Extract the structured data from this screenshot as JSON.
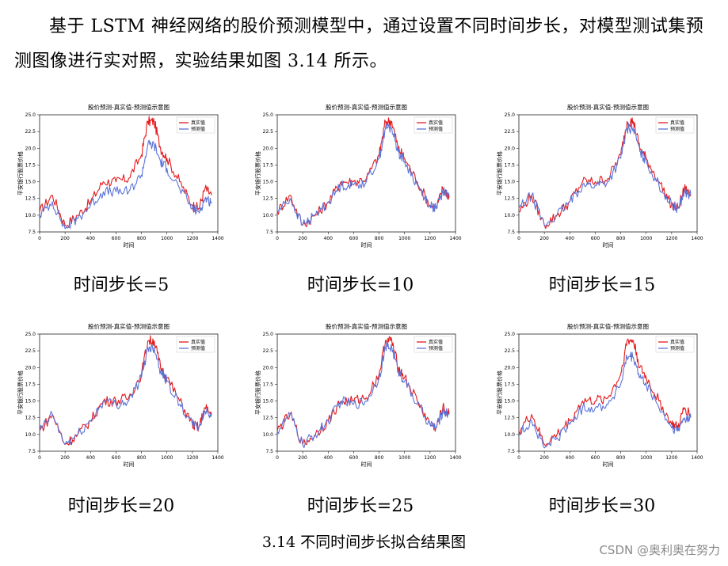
{
  "paragraph": "基于 LSTM 神经网络的股价预测模型中，通过设置不同时间步长，对模型测试集预测图像进行实对照，实验结果如图 3.14 所示。",
  "colors": {
    "real": "#e41a1c",
    "predicted": "#5b74d9"
  },
  "figure_caption": "3.14  不同时间步长拟合结果图",
  "watermark": "CSDN @奥利奥在努力",
  "charts": [
    {
      "caption": "时间步长=5"
    },
    {
      "caption": "时间步长=10"
    },
    {
      "caption": "时间步长=15"
    },
    {
      "caption": "时间步长=20"
    },
    {
      "caption": "时间步长=25"
    },
    {
      "caption": "时间步长=30"
    }
  ],
  "chart_data": [
    {
      "type": "line",
      "title": "股价预测-真实值-预测值示意图",
      "xlabel": "时间",
      "ylabel": "平安银行股票价格",
      "xlim": [
        0,
        1400
      ],
      "ylim": [
        7.5,
        25.0
      ],
      "x_ticks": [
        0,
        200,
        400,
        600,
        800,
        1000,
        1200,
        1400
      ],
      "y_ticks": [
        "7.5",
        "10.0",
        "12.5",
        "15.0",
        "17.5",
        "20.0",
        "22.5",
        "25.0"
      ],
      "legend_position": "top-right",
      "x": [
        0,
        100,
        200,
        300,
        400,
        500,
        600,
        700,
        800,
        850,
        900,
        950,
        1000,
        1100,
        1200,
        1250,
        1300,
        1350
      ],
      "series": [
        {
          "name": "真实值",
          "values": [
            10.5,
            13.0,
            8.5,
            10.0,
            12.0,
            15.0,
            15.0,
            15.5,
            19.0,
            24.0,
            24.0,
            20.0,
            18.5,
            15.0,
            11.5,
            11.0,
            14.0,
            13.0
          ]
        },
        {
          "name": "预测值",
          "values": [
            10.0,
            12.0,
            8.0,
            9.5,
            11.5,
            13.5,
            13.5,
            13.5,
            16.0,
            20.5,
            20.5,
            18.0,
            17.0,
            14.0,
            11.0,
            10.5,
            12.5,
            12.0
          ]
        }
      ]
    },
    {
      "type": "line",
      "title": "股价预测-真实值-预测值示意图",
      "xlabel": "时间",
      "ylabel": "平安银行股票价格",
      "xlim": [
        0,
        1400
      ],
      "ylim": [
        7.5,
        25.0
      ],
      "x_ticks": [
        0,
        200,
        400,
        600,
        800,
        1000,
        1200,
        1400
      ],
      "y_ticks": [
        "7.5",
        "10.0",
        "12.5",
        "15.0",
        "17.5",
        "20.0",
        "22.5",
        "25.0"
      ],
      "legend_position": "top-right",
      "x": [
        0,
        100,
        200,
        300,
        400,
        500,
        600,
        700,
        800,
        850,
        900,
        950,
        1000,
        1100,
        1200,
        1250,
        1300,
        1350
      ],
      "series": [
        {
          "name": "真实值",
          "values": [
            10.5,
            13.0,
            8.5,
            10.0,
            12.0,
            15.0,
            15.0,
            15.5,
            19.0,
            24.0,
            24.0,
            20.0,
            18.5,
            15.0,
            11.5,
            11.0,
            14.0,
            13.0
          ]
        },
        {
          "name": "预测值",
          "values": [
            10.5,
            12.5,
            8.5,
            10.0,
            12.0,
            14.5,
            14.5,
            15.0,
            18.5,
            23.0,
            23.0,
            19.5,
            18.0,
            14.5,
            11.5,
            11.0,
            13.5,
            13.0
          ]
        }
      ]
    },
    {
      "type": "line",
      "title": "股价预测-真实值-预测值示意图",
      "xlabel": "时间",
      "ylabel": "平安银行股票价格",
      "xlim": [
        0,
        1400
      ],
      "ylim": [
        7.5,
        25.0
      ],
      "x_ticks": [
        0,
        200,
        400,
        600,
        800,
        1000,
        1200,
        1400
      ],
      "y_ticks": [
        "7.5",
        "10.0",
        "12.5",
        "15.0",
        "17.5",
        "20.0",
        "22.5",
        "25.0"
      ],
      "legend_position": "top-right",
      "x": [
        0,
        100,
        200,
        300,
        400,
        500,
        600,
        700,
        800,
        850,
        900,
        950,
        1000,
        1100,
        1200,
        1250,
        1300,
        1350
      ],
      "series": [
        {
          "name": "真实值",
          "values": [
            10.5,
            13.0,
            8.5,
            10.0,
            12.0,
            15.0,
            15.0,
            15.5,
            19.0,
            24.0,
            24.0,
            20.0,
            18.5,
            15.0,
            11.5,
            11.0,
            14.0,
            13.0
          ]
        },
        {
          "name": "预测值",
          "values": [
            11.0,
            13.0,
            8.5,
            10.0,
            12.0,
            14.5,
            14.5,
            15.0,
            18.5,
            23.0,
            23.0,
            19.5,
            18.0,
            14.5,
            11.5,
            11.0,
            13.5,
            13.0
          ]
        }
      ]
    },
    {
      "type": "line",
      "title": "股价预测-真实值-预测值示意图",
      "xlabel": "时间",
      "ylabel": "平安银行股票价格",
      "xlim": [
        0,
        1400
      ],
      "ylim": [
        7.5,
        25.0
      ],
      "x_ticks": [
        0,
        200,
        400,
        600,
        800,
        1000,
        1200,
        1400
      ],
      "y_ticks": [
        "7.5",
        "10.0",
        "12.5",
        "15.0",
        "17.5",
        "20.0",
        "22.5",
        "25.0"
      ],
      "legend_position": "top-right",
      "x": [
        0,
        100,
        200,
        300,
        400,
        500,
        600,
        700,
        800,
        850,
        900,
        950,
        1000,
        1100,
        1200,
        1250,
        1300,
        1350
      ],
      "series": [
        {
          "name": "真实值",
          "values": [
            10.5,
            13.0,
            8.5,
            10.0,
            12.0,
            15.0,
            15.0,
            15.5,
            19.0,
            24.0,
            24.0,
            20.0,
            18.5,
            15.0,
            11.5,
            11.0,
            14.0,
            13.0
          ]
        },
        {
          "name": "预测值",
          "values": [
            10.5,
            13.0,
            8.5,
            10.0,
            12.0,
            15.0,
            14.5,
            15.0,
            18.5,
            23.0,
            23.0,
            19.5,
            18.0,
            14.5,
            11.5,
            11.0,
            13.5,
            13.0
          ]
        }
      ]
    },
    {
      "type": "line",
      "title": "股价预测-真实值-预测值示意图",
      "xlabel": "时间",
      "ylabel": "平安银行股票价格",
      "xlim": [
        0,
        1400
      ],
      "ylim": [
        7.5,
        25.0
      ],
      "x_ticks": [
        0,
        200,
        400,
        600,
        800,
        1000,
        1200,
        1400
      ],
      "y_ticks": [
        "7.5",
        "10.0",
        "12.5",
        "15.0",
        "17.5",
        "20.0",
        "22.5",
        "25.0"
      ],
      "legend_position": "top-right",
      "x": [
        0,
        100,
        200,
        300,
        400,
        500,
        600,
        700,
        800,
        850,
        900,
        950,
        1000,
        1100,
        1200,
        1250,
        1300,
        1350
      ],
      "series": [
        {
          "name": "真实值",
          "values": [
            10.5,
            13.0,
            8.5,
            10.0,
            12.0,
            15.0,
            15.0,
            15.5,
            19.0,
            24.0,
            24.0,
            20.0,
            18.5,
            15.0,
            11.5,
            11.0,
            14.0,
            13.0
          ]
        },
        {
          "name": "预测值",
          "values": [
            10.5,
            13.0,
            8.5,
            10.0,
            12.0,
            15.0,
            14.5,
            15.0,
            18.5,
            23.0,
            23.0,
            19.5,
            18.0,
            14.5,
            11.5,
            11.0,
            13.5,
            13.0
          ]
        }
      ]
    },
    {
      "type": "line",
      "title": "股价预测-真实值-预测值示意图",
      "xlabel": "时间",
      "ylabel": "平安银行股票价格",
      "xlim": [
        0,
        1400
      ],
      "ylim": [
        7.5,
        25.0
      ],
      "x_ticks": [
        0,
        200,
        400,
        600,
        800,
        1000,
        1200,
        1400
      ],
      "y_ticks": [
        "7.5",
        "10.0",
        "12.5",
        "15.0",
        "17.5",
        "20.0",
        "22.5",
        "25.0"
      ],
      "legend_position": "top-right",
      "x": [
        0,
        100,
        200,
        300,
        400,
        500,
        600,
        700,
        800,
        850,
        900,
        950,
        1000,
        1100,
        1200,
        1250,
        1300,
        1350
      ],
      "series": [
        {
          "name": "真实值",
          "values": [
            10.5,
            13.0,
            8.5,
            10.0,
            12.0,
            15.0,
            15.0,
            15.5,
            19.0,
            24.0,
            24.0,
            20.0,
            18.5,
            15.0,
            11.5,
            11.0,
            14.0,
            13.0
          ]
        },
        {
          "name": "预测值",
          "values": [
            10.0,
            12.0,
            8.0,
            9.5,
            11.5,
            14.0,
            14.0,
            14.5,
            17.5,
            21.5,
            21.5,
            18.5,
            17.5,
            14.0,
            11.0,
            10.5,
            12.5,
            12.5
          ]
        }
      ]
    }
  ]
}
